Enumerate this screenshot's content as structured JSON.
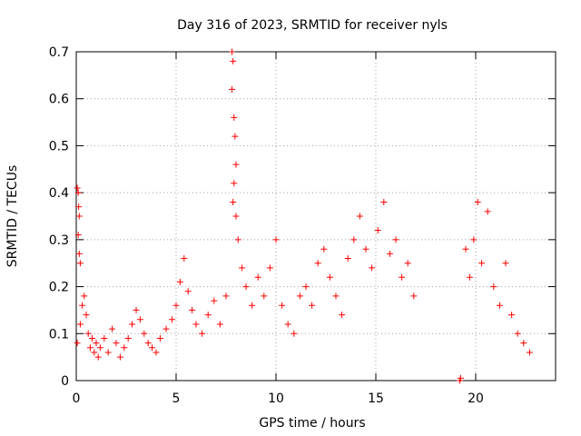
{
  "chart_data": {
    "type": "scatter",
    "title": "Day 316 of 2023, SRMTID for receiver nyls",
    "xlabel": "GPS time / hours",
    "ylabel": "SRMTID / TECUs",
    "xlim": [
      0,
      24
    ],
    "ylim": [
      0,
      0.7
    ],
    "xticks": [
      0,
      5,
      10,
      15,
      20
    ],
    "xtick_labels": [
      "0",
      "5",
      "10",
      "15",
      "20"
    ],
    "yticks": [
      0,
      0.1,
      0.2,
      0.3,
      0.4,
      0.5,
      0.6,
      0.7
    ],
    "ytick_labels": [
      "0",
      "0.1",
      "0.2",
      "0.3",
      "0.4",
      "0.5",
      "0.6",
      "0.7"
    ],
    "grid": true,
    "marker": "+",
    "color": "#ff0000",
    "series": [
      {
        "name": "SRMTID",
        "points": [
          [
            0.05,
            0.41
          ],
          [
            0.1,
            0.4
          ],
          [
            0.12,
            0.37
          ],
          [
            0.15,
            0.35
          ],
          [
            0.1,
            0.31
          ],
          [
            0.15,
            0.27
          ],
          [
            0.2,
            0.25
          ],
          [
            0.05,
            0.08
          ],
          [
            0.2,
            0.12
          ],
          [
            0.3,
            0.16
          ],
          [
            0.4,
            0.18
          ],
          [
            0.5,
            0.14
          ],
          [
            0.6,
            0.1
          ],
          [
            0.7,
            0.07
          ],
          [
            0.8,
            0.09
          ],
          [
            0.9,
            0.06
          ],
          [
            1.0,
            0.08
          ],
          [
            1.1,
            0.05
          ],
          [
            1.2,
            0.07
          ],
          [
            1.4,
            0.09
          ],
          [
            1.6,
            0.06
          ],
          [
            1.8,
            0.11
          ],
          [
            2.0,
            0.08
          ],
          [
            2.2,
            0.05
          ],
          [
            2.4,
            0.07
          ],
          [
            2.6,
            0.09
          ],
          [
            2.8,
            0.12
          ],
          [
            3.0,
            0.15
          ],
          [
            3.2,
            0.13
          ],
          [
            3.4,
            0.1
          ],
          [
            3.6,
            0.08
          ],
          [
            3.8,
            0.07
          ],
          [
            4.0,
            0.06
          ],
          [
            4.2,
            0.09
          ],
          [
            4.5,
            0.11
          ],
          [
            4.8,
            0.13
          ],
          [
            5.0,
            0.16
          ],
          [
            5.2,
            0.21
          ],
          [
            5.4,
            0.26
          ],
          [
            5.6,
            0.19
          ],
          [
            5.8,
            0.15
          ],
          [
            6.0,
            0.12
          ],
          [
            6.3,
            0.1
          ],
          [
            6.6,
            0.14
          ],
          [
            6.9,
            0.17
          ],
          [
            7.2,
            0.12
          ],
          [
            7.5,
            0.18
          ],
          [
            7.8,
            0.7
          ],
          [
            7.85,
            0.68
          ],
          [
            7.8,
            0.62
          ],
          [
            7.9,
            0.56
          ],
          [
            7.95,
            0.52
          ],
          [
            8.0,
            0.46
          ],
          [
            7.9,
            0.42
          ],
          [
            7.85,
            0.38
          ],
          [
            8.0,
            0.35
          ],
          [
            8.1,
            0.3
          ],
          [
            8.3,
            0.24
          ],
          [
            8.5,
            0.2
          ],
          [
            8.8,
            0.16
          ],
          [
            9.1,
            0.22
          ],
          [
            9.4,
            0.18
          ],
          [
            9.7,
            0.24
          ],
          [
            10.0,
            0.3
          ],
          [
            10.3,
            0.16
          ],
          [
            10.6,
            0.12
          ],
          [
            10.9,
            0.1
          ],
          [
            11.2,
            0.18
          ],
          [
            11.5,
            0.2
          ],
          [
            11.8,
            0.16
          ],
          [
            12.1,
            0.25
          ],
          [
            12.4,
            0.28
          ],
          [
            12.7,
            0.22
          ],
          [
            13.0,
            0.18
          ],
          [
            13.3,
            0.14
          ],
          [
            13.6,
            0.26
          ],
          [
            13.9,
            0.3
          ],
          [
            14.2,
            0.35
          ],
          [
            14.5,
            0.28
          ],
          [
            14.8,
            0.24
          ],
          [
            15.1,
            0.32
          ],
          [
            15.4,
            0.38
          ],
          [
            15.7,
            0.27
          ],
          [
            16.0,
            0.3
          ],
          [
            16.3,
            0.22
          ],
          [
            16.6,
            0.25
          ],
          [
            16.9,
            0.18
          ],
          [
            19.2,
            0.0
          ],
          [
            19.25,
            0.005
          ],
          [
            19.5,
            0.28
          ],
          [
            19.7,
            0.22
          ],
          [
            19.9,
            0.3
          ],
          [
            20.1,
            0.38
          ],
          [
            20.3,
            0.25
          ],
          [
            20.6,
            0.36
          ],
          [
            20.9,
            0.2
          ],
          [
            21.2,
            0.16
          ],
          [
            21.5,
            0.25
          ],
          [
            21.8,
            0.14
          ],
          [
            22.1,
            0.1
          ],
          [
            22.4,
            0.08
          ],
          [
            22.7,
            0.06
          ]
        ]
      }
    ]
  }
}
